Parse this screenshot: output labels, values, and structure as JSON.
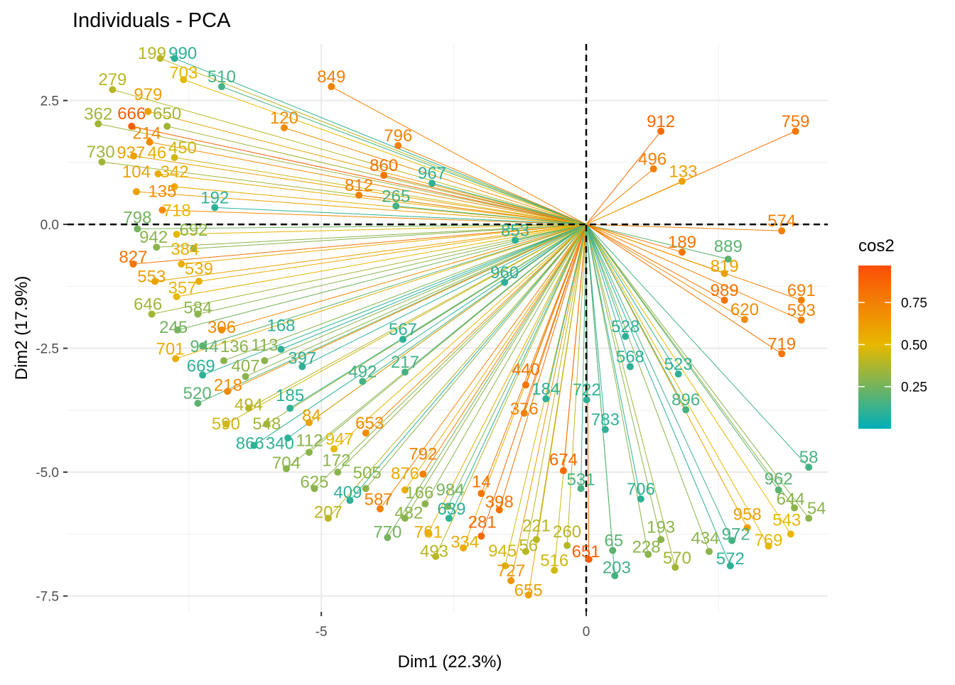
{
  "chart_data": {
    "type": "scatter",
    "title": "Individuals - PCA",
    "xlabel": "Dim1 (22.3%)",
    "ylabel": "Dim2 (17.9%)",
    "xlim": [
      -9.79,
      4.56
    ],
    "ylim": [
      -7.82,
      3.64
    ],
    "x_ticks": [
      {
        "value": -5,
        "label": "-5"
      },
      {
        "value": 0,
        "label": "0"
      }
    ],
    "y_ticks": [
      {
        "value": 2.5,
        "label": "2.5"
      },
      {
        "value": 0,
        "label": "0.0"
      },
      {
        "value": -2.5,
        "label": "-2.5"
      },
      {
        "value": -5,
        "label": "-5.0"
      },
      {
        "value": -7.5,
        "label": "-7.5"
      }
    ],
    "grid": true,
    "reference_lines": {
      "x": 0,
      "y": 0,
      "style": "dashed"
    },
    "legend": {
      "title": "cos2",
      "placement": "right",
      "range": [
        0,
        0.97
      ],
      "ticks": [
        {
          "value": 0.75,
          "label": "0.75"
        },
        {
          "value": 0.5,
          "label": "0.50"
        },
        {
          "value": 0.25,
          "label": "0.25"
        }
      ],
      "colors": {
        "low": "#00AFBB",
        "mid": "#E7B800",
        "high": "#FC4E07"
      }
    },
    "points": [
      [
        "199",
        -8.04,
        3.35,
        0.4
      ],
      [
        "990",
        -7.77,
        3.35,
        0.1
      ],
      [
        "279",
        -8.94,
        2.72,
        0.4
      ],
      [
        "362",
        -9.21,
        2.03,
        0.35
      ],
      [
        "666",
        -8.58,
        1.98,
        0.9
      ],
      [
        "979",
        -8.27,
        2.28,
        0.6
      ],
      [
        "730",
        -9.14,
        1.26,
        0.35
      ],
      [
        "937",
        -8.54,
        1.38,
        0.6
      ],
      [
        "214",
        -8.24,
        1.66,
        0.7
      ],
      [
        "46",
        -8.08,
        1.02,
        0.55
      ],
      [
        "104",
        -8.49,
        0.66,
        0.6
      ],
      [
        "342",
        -7.77,
        0.76,
        0.55
      ],
      [
        "135",
        -8.0,
        0.29,
        0.7
      ],
      [
        "798",
        -8.47,
        -0.09,
        0.25
      ],
      [
        "942",
        -8.11,
        -0.46,
        0.3
      ],
      [
        "827",
        -8.55,
        -0.8,
        0.8
      ],
      [
        "553",
        -8.14,
        -1.15,
        0.6
      ],
      [
        "357",
        -7.73,
        -1.46,
        0.5
      ],
      [
        "646",
        -8.2,
        -1.81,
        0.35
      ],
      [
        "245",
        -7.71,
        -2.13,
        0.25
      ],
      [
        "944",
        -7.24,
        -2.45,
        0.2
      ],
      [
        "701",
        -7.75,
        -2.71,
        0.55
      ],
      [
        "669",
        -7.24,
        -3.04,
        0.1
      ],
      [
        "520",
        -7.33,
        -3.61,
        0.2
      ],
      [
        "218",
        -6.77,
        -3.37,
        0.7
      ],
      [
        "590",
        -6.8,
        -4.03,
        0.45
      ],
      [
        "494",
        -6.37,
        -3.71,
        0.4
      ],
      [
        "185",
        -5.59,
        -3.71,
        0.1
      ],
      [
        "866",
        -6.27,
        -4.46,
        0.1
      ],
      [
        "340",
        -5.63,
        -4.31,
        0.1
      ],
      [
        "704",
        -5.66,
        -4.93,
        0.3
      ],
      [
        "625",
        -5.13,
        -5.33,
        0.3
      ],
      [
        "207",
        -4.87,
        -5.93,
        0.4
      ],
      [
        "409",
        -4.46,
        -5.57,
        0.1
      ],
      [
        "587",
        -3.89,
        -5.74,
        0.75
      ],
      [
        "770",
        -3.75,
        -6.32,
        0.25
      ],
      [
        "761",
        -2.98,
        -6.22,
        0.55
      ],
      [
        "639",
        -2.59,
        -5.93,
        0.1
      ],
      [
        "493",
        -2.84,
        -6.7,
        0.4
      ],
      [
        "334",
        -2.32,
        -6.53,
        0.55
      ],
      [
        "281",
        -1.98,
        -6.29,
        0.85
      ],
      [
        "398",
        -1.64,
        -5.76,
        0.8
      ],
      [
        "945",
        -1.53,
        -6.89,
        0.45
      ],
      [
        "727",
        -1.42,
        -7.19,
        0.65
      ],
      [
        "655",
        -1.09,
        -7.48,
        0.6
      ],
      [
        "516",
        -0.6,
        -6.98,
        0.45
      ],
      [
        "651",
        0.05,
        -6.76,
        0.9
      ],
      [
        "203",
        0.54,
        -7.09,
        0.15
      ],
      [
        "228",
        1.17,
        -6.66,
        0.3
      ],
      [
        "570",
        1.68,
        -6.92,
        0.35
      ],
      [
        "572",
        2.72,
        -6.89,
        0.1
      ],
      [
        "434",
        2.32,
        -6.6,
        0.3
      ],
      [
        "769",
        3.44,
        -6.49,
        0.5
      ],
      [
        "543",
        3.86,
        -6.25,
        0.5
      ],
      [
        "54",
        4.2,
        -5.93,
        0.3
      ],
      [
        "958",
        3.04,
        -6.12,
        0.6
      ],
      [
        "972",
        2.75,
        -6.38,
        0.15
      ],
      [
        "644",
        3.93,
        -5.72,
        0.3
      ],
      [
        "962",
        3.63,
        -5.36,
        0.2
      ],
      [
        "58",
        4.2,
        -4.9,
        0.15
      ],
      [
        "674",
        -0.43,
        -4.97,
        0.85
      ],
      [
        "706",
        1.03,
        -5.54,
        0.1
      ],
      [
        "783",
        0.36,
        -4.14,
        0.1
      ],
      [
        "568",
        0.83,
        -2.87,
        0.1
      ],
      [
        "528",
        0.74,
        -2.26,
        0.1
      ],
      [
        "523",
        1.74,
        -3.02,
        0.1
      ],
      [
        "896",
        1.88,
        -3.74,
        0.15
      ],
      [
        "722",
        0.01,
        -3.54,
        0.1
      ],
      [
        "184",
        -0.76,
        -3.52,
        0.1
      ],
      [
        "376",
        -1.17,
        -3.81,
        0.75
      ],
      [
        "440",
        -1.14,
        -3.24,
        0.8
      ],
      [
        "653",
        -4.16,
        -4.21,
        0.7
      ],
      [
        "84",
        -5.23,
        -4.0,
        0.6
      ],
      [
        "947",
        -4.76,
        -4.53,
        0.5
      ],
      [
        "792",
        -3.08,
        -5.04,
        0.75
      ],
      [
        "14",
        -1.98,
        -5.43,
        0.8
      ],
      [
        "397",
        -5.36,
        -2.87,
        0.1
      ],
      [
        "567",
        -3.46,
        -2.32,
        0.1
      ],
      [
        "492",
        -4.22,
        -3.17,
        0.15
      ],
      [
        "217",
        -3.42,
        -2.98,
        0.15
      ],
      [
        "860",
        -3.82,
        0.99,
        0.8
      ],
      [
        "812",
        -4.29,
        0.59,
        0.75
      ],
      [
        "967",
        -2.91,
        0.83,
        0.1
      ],
      [
        "265",
        -3.59,
        0.37,
        0.15
      ],
      [
        "853",
        -1.34,
        -0.32,
        0.1
      ],
      [
        "960",
        -1.54,
        -1.17,
        0.1
      ],
      [
        "989",
        2.61,
        -1.53,
        0.8
      ],
      [
        "620",
        2.99,
        -1.92,
        0.7
      ],
      [
        "719",
        3.69,
        -2.61,
        0.8
      ],
      [
        "593",
        4.06,
        -1.93,
        0.75
      ],
      [
        "691",
        4.06,
        -1.53,
        0.75
      ],
      [
        "574",
        3.69,
        -0.13,
        0.75
      ],
      [
        "889",
        2.68,
        -0.7,
        0.2
      ],
      [
        "819",
        2.61,
        -0.99,
        0.6
      ],
      [
        "189",
        1.81,
        -0.56,
        0.8
      ],
      [
        "759",
        3.95,
        1.88,
        0.8
      ],
      [
        "912",
        1.41,
        1.88,
        0.85
      ],
      [
        "496",
        1.27,
        1.12,
        0.75
      ],
      [
        "133",
        1.81,
        0.87,
        0.6
      ],
      [
        "796",
        -3.55,
        1.59,
        0.75
      ],
      [
        "120",
        -5.7,
        1.95,
        0.7
      ],
      [
        "849",
        -4.81,
        2.78,
        0.75
      ],
      [
        "703",
        -7.6,
        2.92,
        0.5
      ],
      [
        "510",
        -6.88,
        2.78,
        0.15
      ],
      [
        "650",
        -7.91,
        1.98,
        0.35
      ],
      [
        "450",
        -7.77,
        1.35,
        0.45
      ],
      [
        "192",
        -7.01,
        0.34,
        0.1
      ],
      [
        "718",
        -7.73,
        -0.2,
        0.5
      ],
      [
        "692",
        -7.41,
        -0.49,
        0.3
      ],
      [
        "384",
        -7.64,
        -0.8,
        0.55
      ],
      [
        "539",
        -7.31,
        -1.15,
        0.55
      ],
      [
        "584",
        -7.33,
        -1.81,
        0.3
      ],
      [
        "306",
        -6.88,
        -2.13,
        0.7
      ],
      [
        "136",
        -6.84,
        -2.75,
        0.3
      ],
      [
        "407",
        -6.43,
        -3.07,
        0.3
      ],
      [
        "113",
        -6.07,
        -2.75,
        0.3
      ],
      [
        "168",
        -5.76,
        -2.52,
        0.1
      ],
      [
        "548",
        -6.03,
        -4.03,
        0.35
      ],
      [
        "112",
        -5.23,
        -4.6,
        0.3
      ],
      [
        "172",
        -4.69,
        -5.0,
        0.3
      ],
      [
        "505",
        -4.16,
        -5.33,
        0.3
      ],
      [
        "482",
        -3.42,
        -5.93,
        0.3
      ],
      [
        "166",
        -3.04,
        -5.64,
        0.3
      ],
      [
        "984",
        -2.61,
        -5.69,
        0.25
      ],
      [
        "876",
        -3.42,
        -5.36,
        0.55
      ],
      [
        "56",
        -1.14,
        -6.6,
        0.4
      ],
      [
        "221",
        -0.94,
        -6.36,
        0.4
      ],
      [
        "260",
        -0.36,
        -6.48,
        0.4
      ],
      [
        "65",
        0.5,
        -6.58,
        0.2
      ],
      [
        "193",
        1.41,
        -6.36,
        0.3
      ],
      [
        "531",
        -0.1,
        -5.33,
        0.15
      ]
    ]
  }
}
